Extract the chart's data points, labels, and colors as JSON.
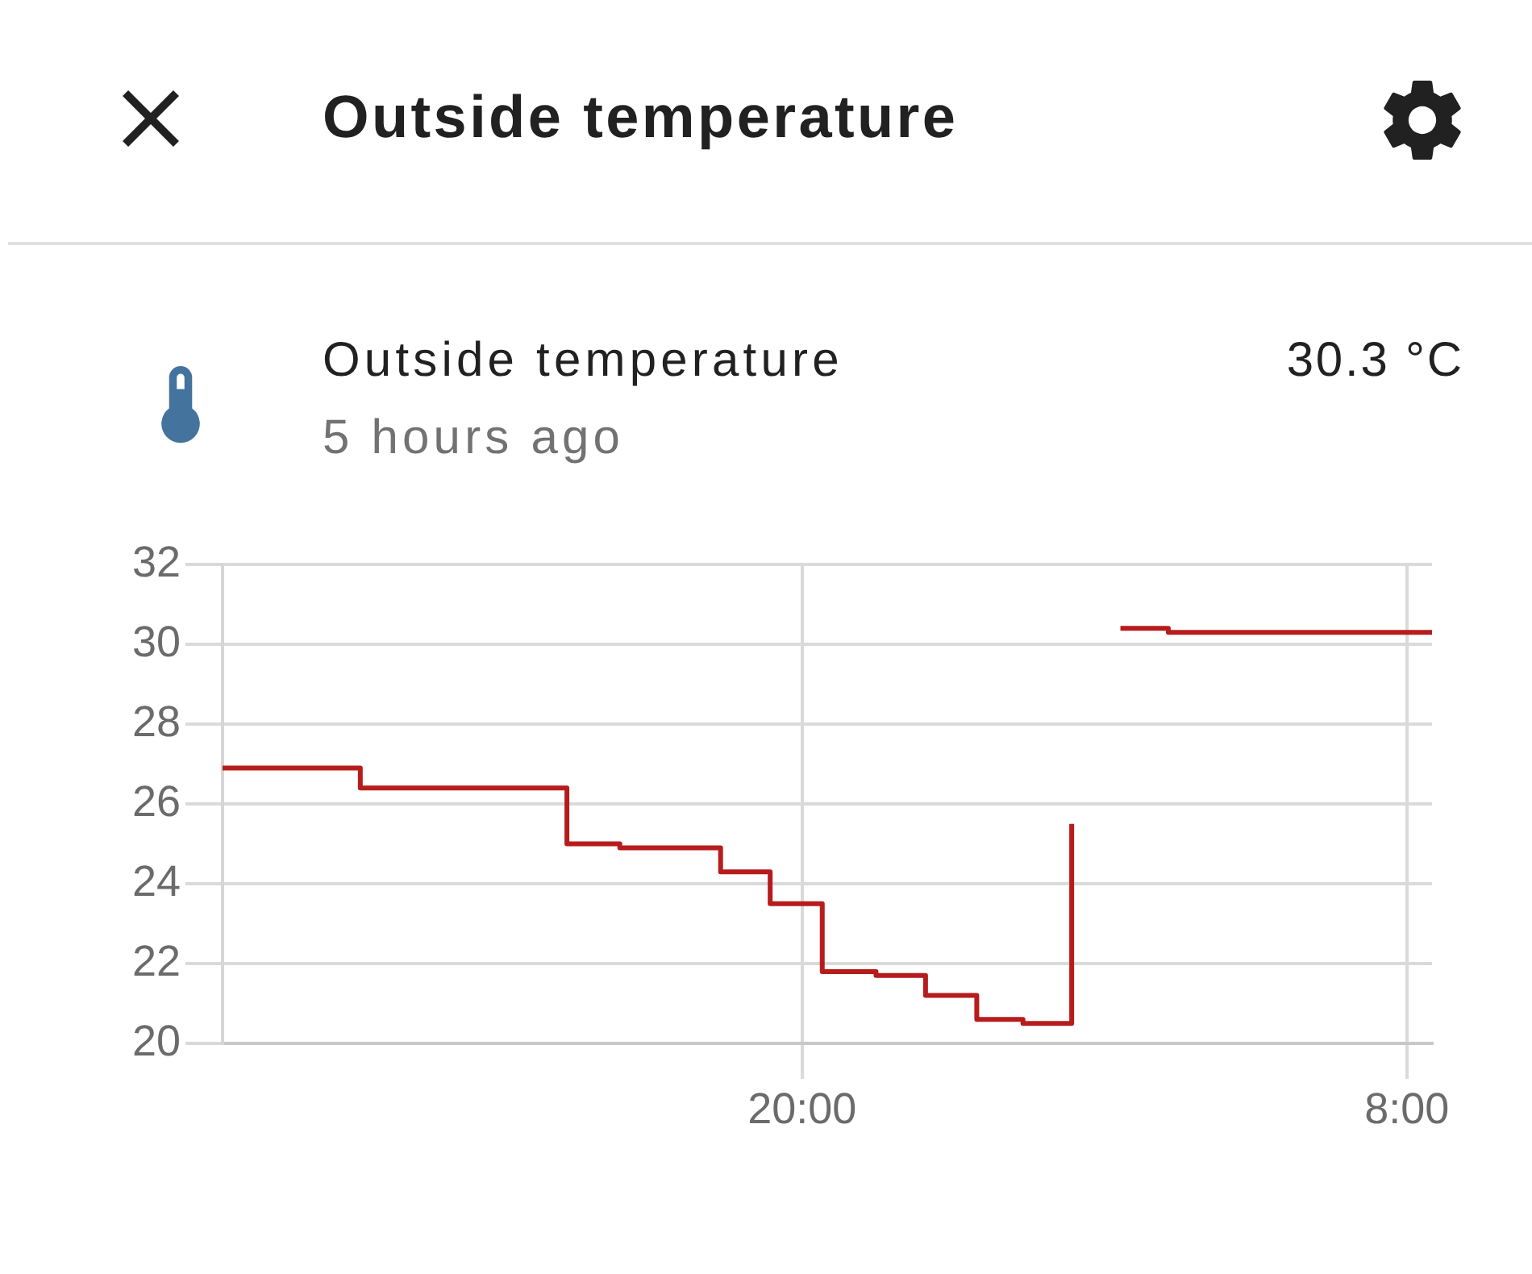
{
  "chart_data": {
    "type": "step",
    "title": "Outside temperature",
    "annotations": [
      "Outside temperature",
      "5 hours ago",
      "30.3 °C"
    ],
    "x": [
      "--01-01T08:30",
      "--01-01T11:14",
      "--01-01T15:20",
      "--01-01T16:23",
      "--01-01T18:23",
      "--01-01T19:22",
      "--01-01T20:24",
      "--01-01T21:28",
      "--01-01T22:27",
      "--01-01T23:28",
      "--01-02T00:23",
      "--01-02T01:21",
      "--01-02T01:48",
      "--01-02T02:19",
      "--01-02T03:16",
      "--01-02T08:30"
    ],
    "values": [
      26.9,
      26.4,
      25.0,
      24.9,
      24.3,
      23.5,
      21.8,
      21.7,
      21.2,
      20.6,
      20.5,
      25.5,
      null,
      30.4,
      30.3,
      30.3
    ],
    "color": "#b71c1c",
    "marker": "none",
    "line_style": "solid",
    "xlim": [
      "--01-01T08:30",
      "--01-02T08:30"
    ],
    "xticks": [
      {
        "value": "--01-01T20:00",
        "label": "20:00"
      },
      {
        "value": "--01-02T08:00",
        "label": "8:00"
      }
    ],
    "ylim": [
      20,
      32
    ],
    "yticks": [
      20,
      22,
      24,
      26,
      28,
      30,
      32
    ],
    "grid": true
  }
}
